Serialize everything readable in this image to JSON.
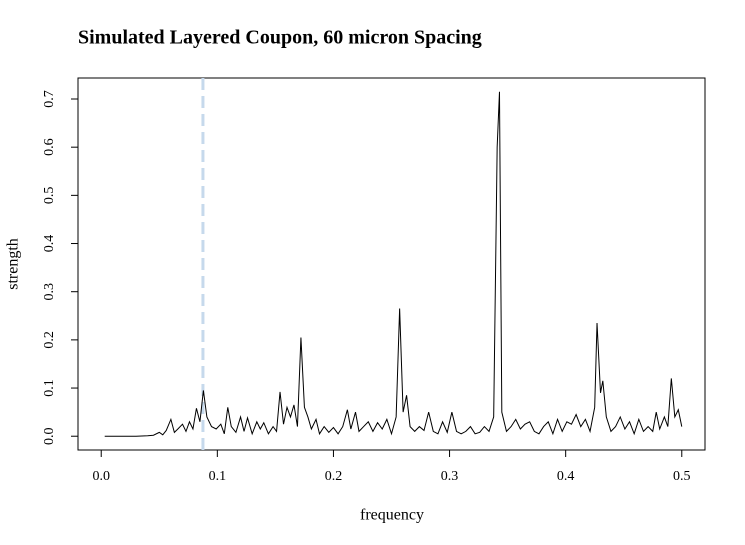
{
  "chart_data": {
    "type": "line",
    "title": "Simulated Layered Coupon, 60 micron Spacing",
    "x_label": "frequency",
    "y_label": "strength",
    "x": [
      0.003,
      0.01,
      0.02,
      0.03,
      0.04,
      0.045,
      0.05,
      0.053,
      0.056,
      0.06,
      0.063,
      0.066,
      0.07,
      0.073,
      0.076,
      0.079,
      0.082,
      0.085,
      0.088,
      0.091,
      0.095,
      0.099,
      0.103,
      0.106,
      0.109,
      0.112,
      0.116,
      0.12,
      0.123,
      0.126,
      0.13,
      0.134,
      0.137,
      0.14,
      0.144,
      0.148,
      0.151,
      0.154,
      0.157,
      0.16,
      0.163,
      0.166,
      0.169,
      0.172,
      0.175,
      0.178,
      0.181,
      0.185,
      0.188,
      0.192,
      0.196,
      0.2,
      0.204,
      0.208,
      0.212,
      0.215,
      0.219,
      0.222,
      0.226,
      0.23,
      0.234,
      0.238,
      0.242,
      0.246,
      0.25,
      0.254,
      0.257,
      0.26,
      0.263,
      0.266,
      0.27,
      0.274,
      0.278,
      0.282,
      0.286,
      0.29,
      0.294,
      0.298,
      0.302,
      0.306,
      0.31,
      0.314,
      0.318,
      0.322,
      0.326,
      0.33,
      0.334,
      0.338,
      0.341,
      0.343,
      0.345,
      0.349,
      0.353,
      0.357,
      0.361,
      0.365,
      0.369,
      0.373,
      0.377,
      0.381,
      0.385,
      0.389,
      0.393,
      0.397,
      0.401,
      0.405,
      0.409,
      0.413,
      0.417,
      0.421,
      0.425,
      0.427,
      0.43,
      0.432,
      0.435,
      0.439,
      0.443,
      0.447,
      0.451,
      0.455,
      0.459,
      0.463,
      0.467,
      0.471,
      0.475,
      0.478,
      0.481,
      0.485,
      0.488,
      0.491,
      0.494,
      0.497,
      0.5
    ],
    "values": [
      0,
      0,
      0,
      0,
      0.001,
      0.002,
      0.008,
      0.003,
      0.012,
      0.035,
      0.008,
      0.015,
      0.025,
      0.01,
      0.03,
      0.015,
      0.058,
      0.03,
      0.095,
      0.04,
      0.02,
      0.015,
      0.025,
      0.005,
      0.06,
      0.02,
      0.008,
      0.04,
      0.01,
      0.038,
      0.005,
      0.03,
      0.015,
      0.028,
      0.005,
      0.02,
      0.01,
      0.092,
      0.025,
      0.06,
      0.04,
      0.065,
      0.02,
      0.205,
      0.06,
      0.04,
      0.015,
      0.035,
      0.005,
      0.02,
      0.008,
      0.018,
      0.005,
      0.02,
      0.055,
      0.015,
      0.05,
      0.01,
      0.02,
      0.03,
      0.01,
      0.028,
      0.015,
      0.035,
      0.005,
      0.04,
      0.265,
      0.05,
      0.085,
      0.02,
      0.01,
      0.02,
      0.012,
      0.05,
      0.01,
      0.005,
      0.03,
      0.008,
      0.05,
      0.01,
      0.005,
      0.01,
      0.02,
      0.005,
      0.008,
      0.02,
      0.01,
      0.04,
      0.6,
      0.715,
      0.05,
      0.01,
      0.02,
      0.035,
      0.015,
      0.025,
      0.03,
      0.01,
      0.005,
      0.02,
      0.03,
      0.005,
      0.035,
      0.01,
      0.03,
      0.025,
      0.045,
      0.02,
      0.035,
      0.01,
      0.06,
      0.235,
      0.09,
      0.115,
      0.04,
      0.01,
      0.02,
      0.04,
      0.015,
      0.03,
      0.005,
      0.035,
      0.01,
      0.02,
      0.01,
      0.05,
      0.015,
      0.04,
      0.02,
      0.12,
      0.04,
      0.055,
      0.02
    ],
    "color": "#000000",
    "vline": 0.0876,
    "vline_color": "#c6d9ec",
    "xlim": [
      -0.02,
      0.52
    ],
    "ylim": [
      -0.0286,
      0.7436
    ],
    "xticks": [
      {
        "value": 0,
        "label": "0.0"
      },
      0.1,
      0.2,
      0.3,
      0.4,
      0.5
    ],
    "yticks": [
      {
        "value": 0,
        "label": "0.0"
      },
      0.1,
      0.2,
      0.3,
      0.4,
      0.5,
      0.6,
      0.7
    ]
  }
}
